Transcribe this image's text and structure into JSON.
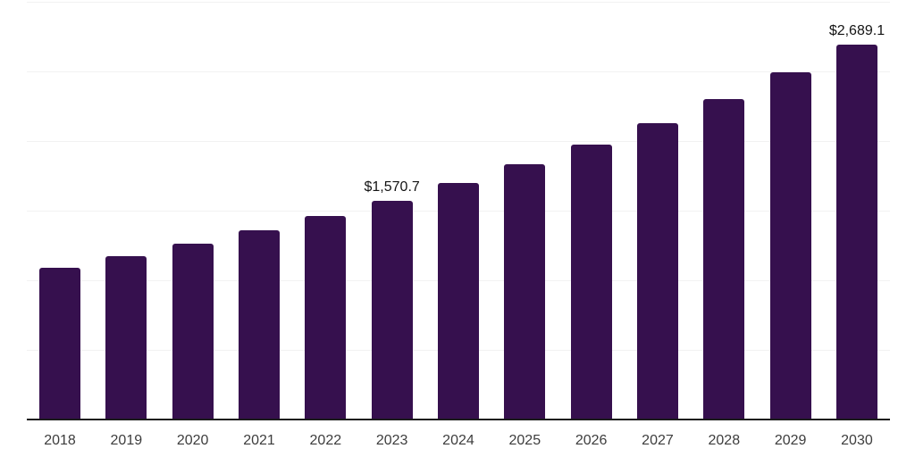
{
  "chart_data": {
    "type": "bar",
    "title": "",
    "xlabel": "",
    "ylabel": "",
    "categories": [
      "2018",
      "2019",
      "2020",
      "2021",
      "2022",
      "2023",
      "2024",
      "2025",
      "2026",
      "2027",
      "2028",
      "2029",
      "2030"
    ],
    "values": [
      1090,
      1170,
      1262,
      1356,
      1459,
      1570.7,
      1695,
      1830,
      1970,
      2124,
      2298,
      2490,
      2689.1
    ],
    "data_labels": {
      "2023": "$1,570.7",
      "2030": "$2,689.1"
    },
    "ylim": [
      0,
      3000
    ],
    "grid_step": 500,
    "grid_visible": true,
    "legend": "none",
    "colors": {
      "bar": "#36104E",
      "gridline": "#f2f2f2",
      "axis_line": "#1b1b1b",
      "tick_label": "#3d3d3d",
      "data_label": "#141414",
      "background": "#ffffff"
    }
  }
}
